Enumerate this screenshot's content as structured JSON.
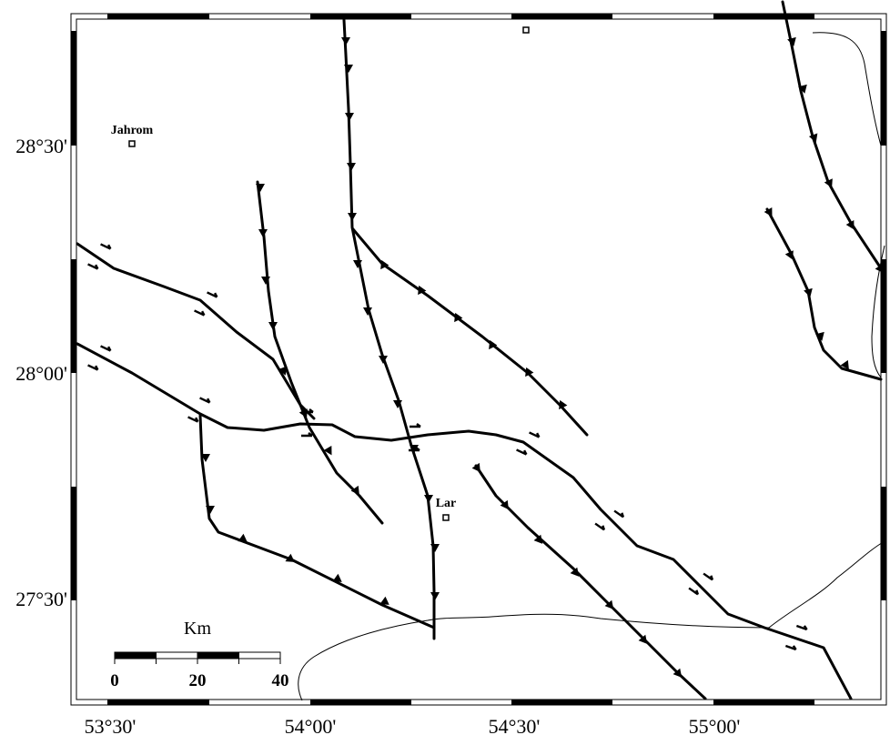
{
  "map": {
    "x_ticks": [
      "53°30'",
      "54°00'",
      "54°30'",
      "55°00'"
    ],
    "y_ticks": [
      "28°30'",
      "28°00'",
      "27°30'"
    ],
    "towns": [
      {
        "name": "Jahrom"
      },
      {
        "name": "Lar"
      },
      {
        "name": ""
      }
    ],
    "scale_bar": {
      "title": "Km",
      "labels": [
        "0",
        "20",
        "40"
      ]
    },
    "frame_color": "#000000",
    "fault_color": "#000000"
  }
}
